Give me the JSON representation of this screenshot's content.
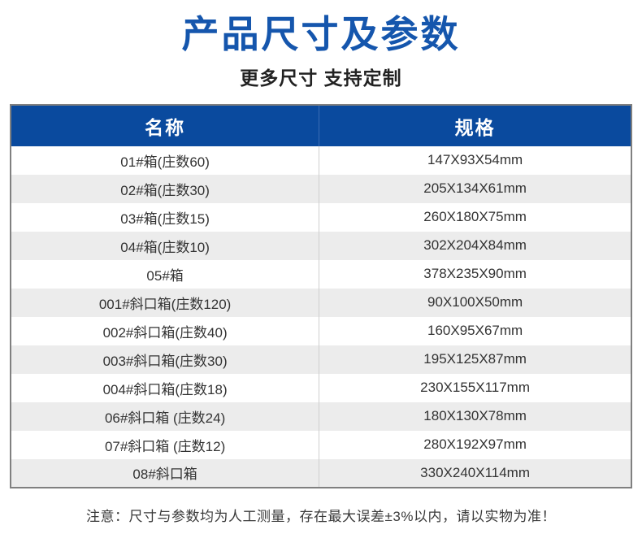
{
  "page": {
    "title": "产品尺寸及参数",
    "subtitle": "更多尺寸 支持定制",
    "note": "注意：尺寸与参数均为人工测量，存在最大误差±3%以内，请以实物为准！"
  },
  "colors": {
    "title_blue": "#1556ad",
    "table_header_blue": "#0a4a9e",
    "row_alt_gray": "#ececec",
    "table_border_gray": "#808080",
    "body_text": "#333333"
  },
  "table": {
    "columns": [
      "名称",
      "规格"
    ],
    "rows": [
      {
        "name": "01#箱(庄数60)",
        "spec": "147X93X54mm"
      },
      {
        "name": "02#箱(庄数30)",
        "spec": "205X134X61mm"
      },
      {
        "name": "03#箱(庄数15)",
        "spec": "260X180X75mm"
      },
      {
        "name": "04#箱(庄数10)",
        "spec": "302X204X84mm"
      },
      {
        "name": "05#箱",
        "spec": "378X235X90mm"
      },
      {
        "name": "001#斜口箱(庄数120)",
        "spec": "90X100X50mm"
      },
      {
        "name": "002#斜口箱(庄数40)",
        "spec": "160X95X67mm"
      },
      {
        "name": "003#斜口箱(庄数30)",
        "spec": "195X125X87mm"
      },
      {
        "name": "004#斜口箱(庄数18)",
        "spec": "230X155X117mm"
      },
      {
        "name": "06#斜口箱 (庄数24)",
        "spec": "180X130X78mm"
      },
      {
        "name": "07#斜口箱 (庄数12)",
        "spec": "280X192X97mm"
      },
      {
        "name": "08#斜口箱",
        "spec": "330X240X114mm"
      }
    ]
  }
}
